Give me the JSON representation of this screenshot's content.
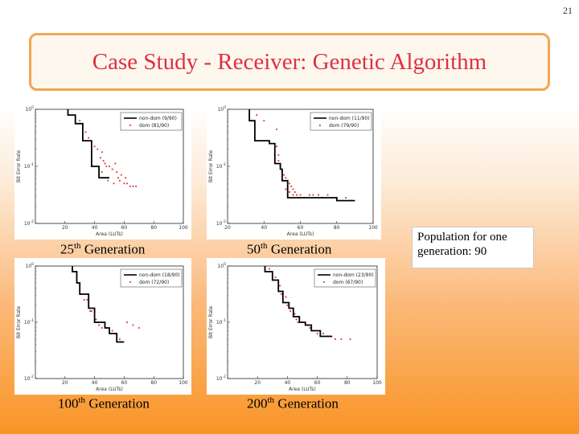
{
  "slide_number": "21",
  "title": "Case Study - Receiver: Genetic Algorithm",
  "note": "Population for one generation: 90",
  "captions": [
    {
      "num": "25",
      "sup": "th",
      "text": " Generation"
    },
    {
      "num": "50",
      "sup": "th",
      "text": " Generation"
    },
    {
      "num": "100",
      "sup": "th",
      "text": " Generation"
    },
    {
      "num": "200",
      "sup": "th",
      "text": " Generation"
    }
  ],
  "chart_data": [
    {
      "type": "scatter",
      "xlabel": "Area (LUTs)",
      "ylabel": "Bit Error Rate",
      "xlim": [
        0,
        100
      ],
      "y_log_exponents": [
        -2,
        0
      ],
      "xticks": [
        "20",
        "40",
        "60",
        "80",
        "100"
      ],
      "yticks": [
        "10^0",
        "10^-1",
        "10^-2"
      ],
      "legend": [
        "non-dom (9/90)",
        "dom (81/90)"
      ],
      "front": [
        [
          22,
          0
        ],
        [
          22,
          -0.1
        ],
        [
          27,
          -0.1
        ],
        [
          27,
          -0.25
        ],
        [
          32,
          -0.25
        ],
        [
          32,
          -0.55
        ],
        [
          38,
          -0.55
        ],
        [
          38,
          -1.0
        ],
        [
          43,
          -1.0
        ],
        [
          43,
          -1.2
        ],
        [
          50,
          -1.2
        ]
      ],
      "points": [
        [
          30,
          -0.2
        ],
        [
          34,
          -0.4
        ],
        [
          36,
          -0.5
        ],
        [
          40,
          -0.65
        ],
        [
          42,
          -0.7
        ],
        [
          45,
          -0.75
        ],
        [
          46,
          -0.9
        ],
        [
          48,
          -1.0
        ],
        [
          50,
          -1.0
        ],
        [
          52,
          -1.05
        ],
        [
          54,
          -0.95
        ],
        [
          55,
          -1.1
        ],
        [
          56,
          -1.2
        ],
        [
          58,
          -1.15
        ],
        [
          60,
          -1.3
        ],
        [
          62,
          -1.3
        ],
        [
          64,
          -1.35
        ],
        [
          66,
          -1.35
        ],
        [
          68,
          -1.35
        ],
        [
          45,
          -1.1
        ],
        [
          49,
          -1.25
        ],
        [
          53,
          -1.3
        ],
        [
          57,
          -1.25
        ],
        [
          61,
          -1.2
        ],
        [
          44,
          -0.85
        ],
        [
          47,
          -0.95
        ]
      ]
    },
    {
      "type": "scatter",
      "xlabel": "Area (LUTs)",
      "ylabel": "Bit Error Rate",
      "xlim": [
        20,
        100
      ],
      "y_log_exponents": [
        -2,
        0
      ],
      "xticks": [
        "20",
        "40",
        "60",
        "80",
        "100"
      ],
      "yticks": [
        "10^0",
        "10^-1",
        "10^-2"
      ],
      "legend": [
        "non-dom (11/90)",
        "dom (79/90)"
      ],
      "front": [
        [
          32,
          0
        ],
        [
          32,
          -0.2
        ],
        [
          35,
          -0.2
        ],
        [
          35,
          -0.55
        ],
        [
          43,
          -0.55
        ],
        [
          43,
          -0.6
        ],
        [
          46,
          -0.6
        ],
        [
          46,
          -0.95
        ],
        [
          49,
          -0.95
        ],
        [
          49,
          -1.05
        ],
        [
          50,
          -1.05
        ],
        [
          50,
          -1.25
        ],
        [
          53,
          -1.25
        ],
        [
          53,
          -1.55
        ],
        [
          80,
          -1.55
        ],
        [
          80,
          -1.6
        ],
        [
          90,
          -1.6
        ]
      ],
      "points": [
        [
          36,
          -0.1
        ],
        [
          40,
          -0.2
        ],
        [
          47,
          -0.35
        ],
        [
          47,
          -0.65
        ],
        [
          48,
          -0.8
        ],
        [
          48,
          -0.9
        ],
        [
          49,
          -1.0
        ],
        [
          50,
          -1.1
        ],
        [
          51,
          -1.15
        ],
        [
          52,
          -1.2
        ],
        [
          53,
          -1.25
        ],
        [
          54,
          -1.3
        ],
        [
          55,
          -1.35
        ],
        [
          56,
          -1.4
        ],
        [
          57,
          -1.45
        ],
        [
          58,
          -1.5
        ],
        [
          52,
          -1.4
        ],
        [
          54,
          -1.45
        ],
        [
          56,
          -1.5
        ],
        [
          60,
          -1.5
        ],
        [
          65,
          -1.5
        ],
        [
          70,
          -1.5
        ],
        [
          75,
          -1.5
        ],
        [
          80,
          -1.55
        ],
        [
          85,
          -1.55
        ],
        [
          88,
          -1.6
        ],
        [
          59,
          -1.55
        ],
        [
          62,
          -1.55
        ],
        [
          67,
          -1.5
        ],
        [
          72,
          -1.55
        ]
      ]
    },
    {
      "type": "scatter",
      "xlabel": "Area (LUTs)",
      "ylabel": "Bit Error Rate",
      "xlim": [
        0,
        100
      ],
      "y_log_exponents": [
        -2,
        0
      ],
      "xticks": [
        "20",
        "40",
        "60",
        "80",
        "100"
      ],
      "yticks": [
        "10^0",
        "10^-1",
        "10^-2"
      ],
      "legend": [
        "non-dom (18/90)",
        "dom (72/90)"
      ],
      "front": [
        [
          25,
          0
        ],
        [
          25,
          -0.1
        ],
        [
          28,
          -0.1
        ],
        [
          28,
          -0.3
        ],
        [
          30,
          -0.3
        ],
        [
          30,
          -0.5
        ],
        [
          36,
          -0.5
        ],
        [
          36,
          -0.75
        ],
        [
          40,
          -0.75
        ],
        [
          40,
          -1.0
        ],
        [
          47,
          -1.0
        ],
        [
          47,
          -1.1
        ],
        [
          50,
          -1.1
        ],
        [
          50,
          -1.2
        ],
        [
          55,
          -1.2
        ],
        [
          55,
          -1.35
        ],
        [
          60,
          -1.35
        ]
      ],
      "points": [
        [
          27,
          -0.1
        ],
        [
          29,
          -0.3
        ],
        [
          31,
          -0.5
        ],
        [
          33,
          -0.6
        ],
        [
          35,
          -0.6
        ],
        [
          37,
          -0.8
        ],
        [
          38,
          -0.8
        ],
        [
          41,
          -0.95
        ],
        [
          42,
          -1.0
        ],
        [
          43,
          -1.05
        ],
        [
          45,
          -1.1
        ],
        [
          48,
          -1.1
        ],
        [
          52,
          -1.15
        ],
        [
          54,
          -1.2
        ],
        [
          57,
          -1.3
        ],
        [
          58,
          -1.35
        ],
        [
          62,
          -1.0
        ],
        [
          66,
          -1.05
        ],
        [
          70,
          -1.1
        ]
      ]
    },
    {
      "type": "scatter",
      "xlabel": "Area (LUTs)",
      "ylabel": "Bit Error Rate",
      "xlim": [
        0,
        100
      ],
      "y_log_exponents": [
        -2,
        0
      ],
      "xticks": [
        "20",
        "40",
        "60",
        "80",
        "100"
      ],
      "yticks": [
        "10^0",
        "10^-1",
        "10^-2"
      ],
      "legend": [
        "non-dom (23/90)",
        "dom (67/90)"
      ],
      "front": [
        [
          25,
          0
        ],
        [
          25,
          -0.1
        ],
        [
          30,
          -0.1
        ],
        [
          30,
          -0.25
        ],
        [
          34,
          -0.25
        ],
        [
          34,
          -0.45
        ],
        [
          37,
          -0.45
        ],
        [
          37,
          -0.65
        ],
        [
          41,
          -0.65
        ],
        [
          41,
          -0.75
        ],
        [
          44,
          -0.75
        ],
        [
          44,
          -0.9
        ],
        [
          48,
          -0.9
        ],
        [
          48,
          -1.0
        ],
        [
          52,
          -1.0
        ],
        [
          52,
          -1.05
        ],
        [
          56,
          -1.05
        ],
        [
          56,
          -1.15
        ],
        [
          62,
          -1.15
        ],
        [
          62,
          -1.25
        ],
        [
          70,
          -1.25
        ]
      ],
      "points": [
        [
          28,
          -0.05
        ],
        [
          32,
          -0.2
        ],
        [
          35,
          -0.35
        ],
        [
          36,
          -0.5
        ],
        [
          39,
          -0.55
        ],
        [
          40,
          -0.7
        ],
        [
          42,
          -0.8
        ],
        [
          45,
          -0.85
        ],
        [
          46,
          -0.95
        ],
        [
          47,
          -1.0
        ],
        [
          50,
          -1.0
        ],
        [
          53,
          -1.05
        ],
        [
          55,
          -1.1
        ],
        [
          58,
          -1.15
        ],
        [
          60,
          -1.2
        ],
        [
          64,
          -1.2
        ],
        [
          67,
          -1.25
        ],
        [
          72,
          -1.3
        ],
        [
          76,
          -1.3
        ],
        [
          82,
          -1.3
        ]
      ]
    }
  ]
}
